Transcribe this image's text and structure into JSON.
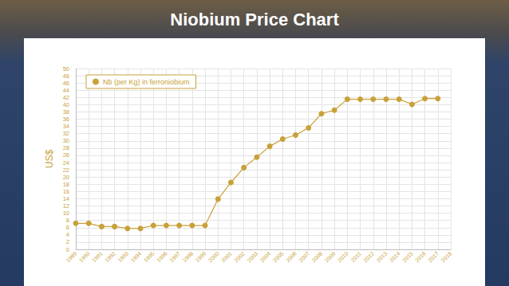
{
  "chart_data": {
    "type": "line",
    "title": "Niobium Price Chart",
    "y_label": "US$",
    "categories": [
      "1989",
      "1990",
      "1991",
      "1992",
      "1993",
      "1994",
      "1995",
      "1996",
      "1997",
      "1998",
      "1999",
      "2000",
      "2001",
      "2002",
      "2003",
      "2004",
      "2005",
      "2006",
      "2007",
      "2008",
      "2009",
      "2010",
      "2011",
      "2012",
      "2013",
      "2014",
      "2015",
      "2016",
      "2017",
      "2018"
    ],
    "series": [
      {
        "name": "Nb (per Kg) in ferroniobium",
        "color": "#c9a13a",
        "marker": "circle",
        "values": [
          7.2,
          7.2,
          6.3,
          6.3,
          5.8,
          5.8,
          6.6,
          6.6,
          6.6,
          6.6,
          6.6,
          13.9,
          18.5,
          22.6,
          25.5,
          28.5,
          30.5,
          31.6,
          33.6,
          37.5,
          38.5,
          41.5,
          41.5,
          41.5,
          41.5,
          41.5,
          40.1,
          41.7,
          41.7,
          null
        ]
      }
    ],
    "ylim": [
      0,
      50
    ],
    "yticks": [
      0,
      2,
      4,
      6,
      8,
      10,
      12,
      14,
      16,
      18,
      20,
      22,
      24,
      26,
      28,
      30,
      32,
      34,
      36,
      38,
      40,
      42,
      44,
      46,
      48,
      50
    ],
    "grid": true,
    "legend": "upper left"
  }
}
